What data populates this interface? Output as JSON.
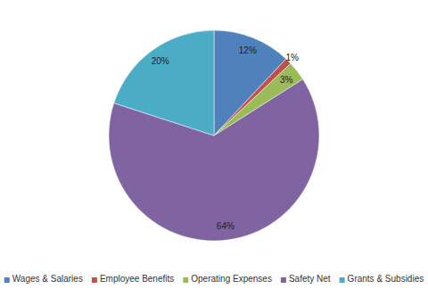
{
  "chart_data": {
    "type": "pie",
    "categories": [
      "Wages & Salaries",
      "Employee Benefits",
      "Operating Expenses",
      "Safety Net",
      "Grants & Subsidies"
    ],
    "values": [
      12,
      1,
      3,
      64,
      20
    ],
    "value_labels": [
      "12%",
      "1%",
      "3%",
      "64%",
      "20%"
    ],
    "colors": [
      "#4f81bd",
      "#c0504d",
      "#9bbb59",
      "#8064a2",
      "#4bacc6"
    ],
    "data_labels": true,
    "legend": "bottom"
  }
}
